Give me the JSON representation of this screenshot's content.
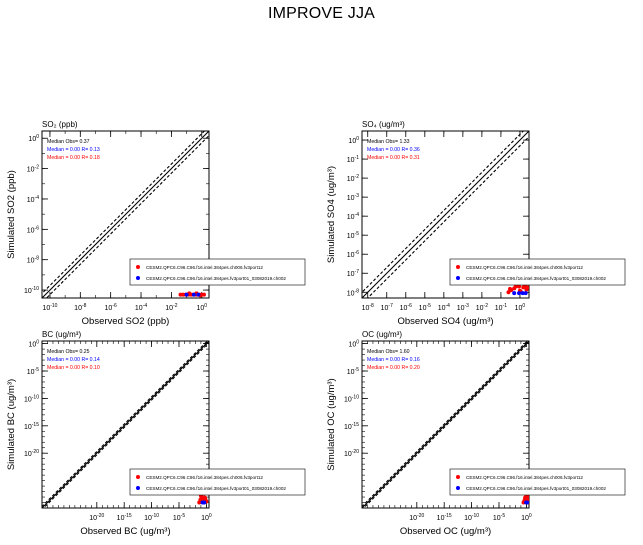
{
  "page_title": "IMPROVE JJA",
  "colors": {
    "model1": "#ff0000",
    "model2": "#0000ff",
    "axis": "#000000"
  },
  "chart_data": [
    {
      "type": "scatter",
      "id": "so2",
      "title": "SO₂ (ppb)",
      "xlabel": "Observed SO2 (ppb)",
      "ylabel": "Simulated SO2 (ppb)",
      "xscale": "log",
      "yscale": "log",
      "xlim": [
        3e-11,
        3
      ],
      "ylim": [
        3e-11,
        3
      ],
      "xtick_exponents": [
        -10,
        -8,
        -6,
        -4,
        -2,
        0
      ],
      "ytick_exponents": [
        -10,
        -8,
        -6,
        -4,
        -2,
        0
      ],
      "reference_lines": [
        "1:1",
        "1:2",
        "2:1"
      ],
      "stats": {
        "median_obs": "Median Obs= 0.37",
        "model1": "Median = 0.00 R= 0.18",
        "model2": "Median = 0.00 R= 0.13"
      },
      "legend": [
        "CESM2.QPC6.C96.C96.f16.intel.384pes.ch006.fv3port12",
        "CESM2.QPC6.C96.C96.f16.intel.384pes.fv3port01_03082019.ch002"
      ],
      "legend_position": "lower-right",
      "series": [
        {
          "name": "model1",
          "x": [
            0.04,
            0.06,
            0.09,
            0.13,
            0.2,
            0.28,
            0.37,
            0.5,
            0.7,
            1.0,
            1.4,
            0.15,
            0.45,
            0.8
          ],
          "y": [
            5e-11,
            5e-11,
            5e-11,
            5e-11,
            5e-11,
            5e-11,
            5e-11,
            5e-11,
            5e-11,
            5e-11,
            5e-11,
            6e-11,
            6e-11,
            4.5e-11
          ]
        },
        {
          "name": "model2",
          "x": [
            0.1,
            0.3,
            0.6
          ],
          "y": [
            5e-11,
            5e-11,
            5e-11
          ]
        }
      ]
    },
    {
      "type": "scatter",
      "id": "so4",
      "title": "SO₄ (ug/m³)",
      "xlabel": "Observed SO4 (ug/m³)",
      "ylabel": "Simulated SO4 (ug/m³)",
      "xscale": "log",
      "yscale": "log",
      "xlim": [
        5e-09,
        3
      ],
      "ylim": [
        5e-09,
        3
      ],
      "xtick_exponents": [
        -8,
        -7,
        -6,
        -5,
        -4,
        -3,
        -2,
        -1,
        0
      ],
      "ytick_exponents": [
        -8,
        -7,
        -6,
        -5,
        -4,
        -3,
        -2,
        -1,
        0
      ],
      "reference_lines": [
        "1:1",
        "1:2",
        "2:1"
      ],
      "stats": {
        "median_obs": "Median Obs= 1.33",
        "model1": "Median = 0.00 R= 0.31",
        "model2": "Median = 0.00 R= 0.36"
      },
      "legend": [
        "CESM2.QPC6.C96.C96.f16.intel.384pes.ch006.fv3port12",
        "CESM2.QPC6.C96.C96.f16.intel.384pes.fv3port01_03082019.ch002"
      ],
      "legend_position": "lower-right",
      "series": [
        {
          "name": "model1",
          "x": [
            0.25,
            0.35,
            0.5,
            0.6,
            0.8,
            1.0,
            1.2,
            1.5,
            1.8,
            2.2,
            2.6,
            0.4,
            0.7,
            1.1,
            1.6,
            2.0,
            0.3,
            0.9,
            1.3,
            2.4
          ],
          "y": [
            1e-08,
            1.3e-08,
            1.6e-08,
            2e-08,
            2.5e-08,
            1.2e-08,
            3e-08,
            1.8e-08,
            2.2e-08,
            1.4e-08,
            2.8e-08,
            3.5e-08,
            4e-08,
            1.1e-08,
            3.2e-08,
            2.6e-08,
            1.5e-08,
            2e-08,
            4.5e-08,
            1.7e-08
          ]
        },
        {
          "name": "model2",
          "x": [
            0.5,
            0.9,
            1.4,
            2.0
          ],
          "y": [
            9e-09,
            9e-09,
            9e-09,
            9e-09
          ]
        }
      ]
    },
    {
      "type": "scatter",
      "id": "bc",
      "title": "BC (ug/m³)",
      "xlabel": "Observed BC (ug/m³)",
      "ylabel": "Simulated BC (ug/m³)",
      "xscale": "log",
      "yscale": "log",
      "xlim": [
        1e-30,
        3
      ],
      "ylim": [
        1e-30,
        3
      ],
      "xtick_exponents": [
        -20,
        -15,
        -10,
        -5,
        0
      ],
      "ytick_exponents": [
        -20,
        -15,
        -10,
        -5,
        0
      ],
      "reference_lines": [
        "1:1",
        "1:2",
        "2:1"
      ],
      "stats": {
        "median_obs": "Median Obs= 0.25",
        "model1": "Median = 0.00 R= 0.10",
        "model2": "Median = 0.00 R= 0.14"
      },
      "legend": [
        "CESM2.QPC6.C96.C96.f16.intel.384pes.ch006.fv3port12",
        "CESM2.QPC6.C96.C96.f16.intel.384pes.fv3port01_03082019.ch002"
      ],
      "legend_position": "lower-right",
      "series": [
        {
          "name": "model1",
          "x": [
            0.05,
            0.08,
            0.12,
            0.18,
            0.25,
            0.35,
            0.5,
            0.7,
            1.0,
            0.1,
            0.3,
            0.6
          ],
          "y": [
            1e-29,
            3e-29,
            1e-28,
            2e-29,
            5e-29,
            1e-29,
            8e-29,
            3e-29,
            1.5e-29,
            2e-28,
            4e-28,
            6e-29
          ]
        },
        {
          "name": "model2",
          "x": [
            0.2,
            0.4
          ],
          "y": [
            1e-29,
            1e-29
          ]
        }
      ]
    },
    {
      "type": "scatter",
      "id": "oc",
      "title": "OC (ug/m³)",
      "xlabel": "Observed OC (ug/m³)",
      "ylabel": "Simulated OC (ug/m³)",
      "xscale": "log",
      "yscale": "log",
      "xlim": [
        1e-30,
        3
      ],
      "ylim": [
        1e-30,
        3
      ],
      "xtick_exponents": [
        -20,
        -15,
        -10,
        -5,
        0
      ],
      "ytick_exponents": [
        -20,
        -15,
        -10,
        -5,
        0
      ],
      "reference_lines": [
        "1:1",
        "1:2",
        "2:1"
      ],
      "stats": {
        "median_obs": "Median Obs= 1.60",
        "model1": "Median = 0.00 R= 0.20",
        "model2": "Median = 0.00 R= 0.16"
      },
      "legend": [
        "CESM2.QPC6.C96.C96.f16.intel.384pes.ch006.fv3port12",
        "CESM2.QPC6.C96.C96.f16.intel.384pes.fv3port01_03082019.ch002"
      ],
      "legend_position": "lower-right",
      "series": [
        {
          "name": "model1",
          "x": [
            0.3,
            0.5,
            0.8,
            1.2,
            1.6,
            2.2,
            0.6,
            1.0,
            1.8,
            0.4
          ],
          "y": [
            1e-29,
            3e-29,
            1e-28,
            2e-29,
            5e-29,
            1e-29,
            8e-29,
            3e-29,
            2e-28,
            1.5e-29
          ]
        },
        {
          "name": "model2",
          "x": [
            0.9,
            1.4
          ],
          "y": [
            1e-29,
            1e-29
          ]
        }
      ]
    }
  ]
}
